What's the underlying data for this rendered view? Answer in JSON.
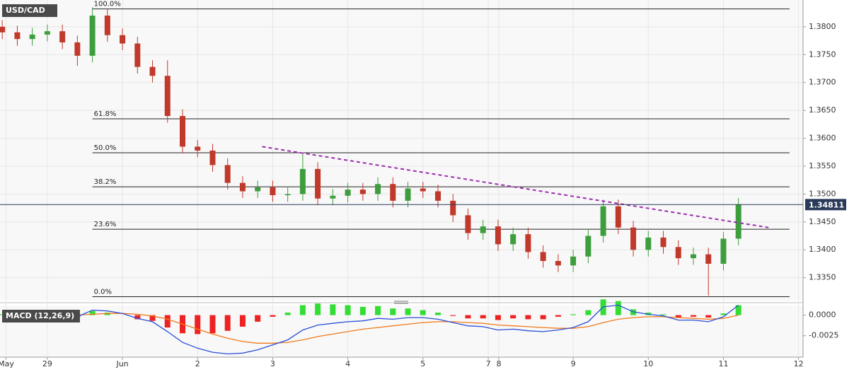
{
  "chart_data": {
    "type": "candlestick",
    "symbol": "USD/CAD",
    "up_color": "#3e9e3e",
    "down_color": "#c0392b",
    "xlim": [
      -1.63,
      9.06
    ],
    "xticks": [
      {
        "value": -1.55,
        "label": "May"
      },
      {
        "value": -1,
        "label": "29"
      },
      {
        "value": 0,
        "label": "Jun"
      },
      {
        "value": 1,
        "label": "2"
      },
      {
        "value": 2,
        "label": "3"
      },
      {
        "value": 3,
        "label": "4"
      },
      {
        "value": 4,
        "label": "5"
      },
      {
        "value": 4.87,
        "label": "7"
      },
      {
        "value": 5.01,
        "label": "8"
      },
      {
        "value": 6,
        "label": "9"
      },
      {
        "value": 7,
        "label": "10"
      },
      {
        "value": 8,
        "label": "11"
      },
      {
        "value": 9,
        "label": "12"
      }
    ],
    "ylim": [
      1.3309,
      1.3848
    ],
    "yticks": [
      {
        "value": 1.335,
        "label": "1.3350"
      },
      {
        "value": 1.34,
        "label": "1.3400"
      },
      {
        "value": 1.345,
        "label": "1.3450"
      },
      {
        "value": 1.35,
        "label": "1.3500"
      },
      {
        "value": 1.355,
        "label": "1.3550"
      },
      {
        "value": 1.36,
        "label": "1.3600"
      },
      {
        "value": 1.365,
        "label": "1.3650"
      },
      {
        "value": 1.37,
        "label": "1.3700"
      },
      {
        "value": 1.375,
        "label": "1.3750"
      },
      {
        "value": 1.38,
        "label": "1.3800"
      }
    ],
    "candles": [
      [
        -1.6,
        1.38,
        1.3812,
        1.3778,
        1.379
      ],
      [
        -1.4,
        1.379,
        1.3802,
        1.3766,
        1.3778
      ],
      [
        -1.2,
        1.3778,
        1.3798,
        1.3766,
        1.3786
      ],
      [
        -1.0,
        1.3786,
        1.3804,
        1.3774,
        1.3792
      ],
      [
        -0.8,
        1.3792,
        1.3804,
        1.376,
        1.3772
      ],
      [
        -0.6,
        1.3772,
        1.3784,
        1.373,
        1.3748
      ],
      [
        -0.4,
        1.3748,
        1.3835,
        1.3736,
        1.382
      ],
      [
        -0.2,
        1.382,
        1.3832,
        1.3773,
        1.3785
      ],
      [
        0,
        1.3785,
        1.3797,
        1.3758,
        1.377
      ],
      [
        0.2,
        1.377,
        1.3782,
        1.3716,
        1.3728
      ],
      [
        0.4,
        1.3728,
        1.374,
        1.37,
        1.3712
      ],
      [
        0.6,
        1.3712,
        1.374,
        1.3628,
        1.364
      ],
      [
        0.8,
        1.364,
        1.3652,
        1.3573,
        1.3585
      ],
      [
        1.0,
        1.3585,
        1.3597,
        1.3566,
        1.3578
      ],
      [
        1.2,
        1.3578,
        1.359,
        1.354,
        1.3552
      ],
      [
        1.4,
        1.3552,
        1.3564,
        1.3508,
        1.352
      ],
      [
        1.6,
        1.352,
        1.3532,
        1.3493,
        1.3505
      ],
      [
        1.8,
        1.3505,
        1.3524,
        1.3493,
        1.3512
      ],
      [
        2.0,
        1.3512,
        1.3524,
        1.3486,
        1.3498
      ],
      [
        2.2,
        1.3498,
        1.3512,
        1.3486,
        1.35
      ],
      [
        2.4,
        1.35,
        1.3572,
        1.3488,
        1.3545
      ],
      [
        2.6,
        1.3545,
        1.3557,
        1.348,
        1.3492
      ],
      [
        2.8,
        1.3492,
        1.3509,
        1.348,
        1.3497
      ],
      [
        3.0,
        1.3497,
        1.352,
        1.3485,
        1.3508
      ],
      [
        3.2,
        1.3508,
        1.352,
        1.3488,
        1.35
      ],
      [
        3.4,
        1.35,
        1.353,
        1.3488,
        1.3518
      ],
      [
        3.6,
        1.3518,
        1.353,
        1.3476,
        1.3488
      ],
      [
        3.8,
        1.3488,
        1.3522,
        1.3476,
        1.351
      ],
      [
        4.0,
        1.351,
        1.3522,
        1.3493,
        1.3505
      ],
      [
        4.2,
        1.3505,
        1.3517,
        1.3476,
        1.3488
      ],
      [
        4.4,
        1.3488,
        1.35,
        1.345,
        1.3462
      ],
      [
        4.6,
        1.3462,
        1.3474,
        1.3418,
        1.343
      ],
      [
        4.8,
        1.343,
        1.3454,
        1.3418,
        1.3442
      ],
      [
        5.0,
        1.3442,
        1.3454,
        1.3398,
        1.341
      ],
      [
        5.2,
        1.341,
        1.344,
        1.3398,
        1.3428
      ],
      [
        5.4,
        1.3428,
        1.344,
        1.3384,
        1.3396
      ],
      [
        5.6,
        1.3396,
        1.3408,
        1.3368,
        1.338
      ],
      [
        5.8,
        1.338,
        1.3392,
        1.336,
        1.3372
      ],
      [
        6.0,
        1.3372,
        1.34,
        1.336,
        1.3388
      ],
      [
        6.2,
        1.3388,
        1.3437,
        1.3376,
        1.3425
      ],
      [
        6.4,
        1.3425,
        1.349,
        1.3413,
        1.3478
      ],
      [
        6.6,
        1.3478,
        1.349,
        1.3428,
        1.344
      ],
      [
        6.8,
        1.344,
        1.3452,
        1.3388,
        1.34
      ],
      [
        7.0,
        1.34,
        1.3434,
        1.3388,
        1.3422
      ],
      [
        7.2,
        1.3422,
        1.3434,
        1.3393,
        1.3405
      ],
      [
        7.4,
        1.3405,
        1.3417,
        1.3373,
        1.3385
      ],
      [
        7.6,
        1.3385,
        1.3404,
        1.3373,
        1.3392
      ],
      [
        7.8,
        1.3392,
        1.3404,
        1.3318,
        1.3375
      ],
      [
        8.0,
        1.3375,
        1.3432,
        1.3363,
        1.342
      ],
      [
        8.2,
        1.342,
        1.3493,
        1.3408,
        1.3481
      ]
    ],
    "fib_levels": [
      {
        "label": "100.0%",
        "value": 1.3832
      },
      {
        "label": "61.8%",
        "value": 1.3635
      },
      {
        "label": "50.0%",
        "value": 1.3574
      },
      {
        "label": "38.2%",
        "value": 1.3513
      },
      {
        "label": "23.6%",
        "value": 1.3437
      },
      {
        "label": "0.0%",
        "value": 1.3316
      }
    ],
    "fib_x": [
      -0.4,
      8.88
    ],
    "trendline": {
      "x": [
        1.86,
        8.6
      ],
      "y": [
        1.3585,
        1.344
      ],
      "color": "#9b2fae"
    },
    "last_price": 1.34811,
    "macd": {
      "label": "MACD (12,26,9)",
      "ylim": [
        -0.00509,
        0.00116
      ],
      "yticks": [
        {
          "value": 0,
          "label": "0.0000"
        },
        -0.0025
      ],
      "macd_color": "#2b4fd6",
      "signal_color": "#f07a1a",
      "hist_up": "#33dd33",
      "hist_down": "#ee2222",
      "macd": [
        0.0002,
        0.0001,
        0.0001,
        0.0002,
        0.0,
        -0.0002,
        0.0006,
        0.0005,
        0.0002,
        -0.0004,
        -0.0008,
        -0.002,
        -0.0033,
        -0.004,
        -0.0045,
        -0.0047,
        -0.0046,
        -0.0042,
        -0.0036,
        -0.003,
        -0.0018,
        -0.0012,
        -0.001,
        -0.0008,
        -0.0007,
        -0.0004,
        -0.0005,
        -0.0003,
        -0.0003,
        -0.0005,
        -0.0009,
        -0.0013,
        -0.0014,
        -0.0018,
        -0.0017,
        -0.0019,
        -0.002,
        -0.0018,
        -0.0015,
        -0.0008,
        0.001,
        0.0012,
        0.0004,
        0.0001,
        -0.0001,
        -0.0006,
        -0.0006,
        -0.0008,
        -0.0002,
        0.0012
      ],
      "signal": [
        0.0001,
        0.0001,
        0.0001,
        0.0001,
        0.0001,
        0.0,
        0.0001,
        0.0002,
        0.0002,
        0.0001,
        -0.0001,
        -0.0005,
        -0.0011,
        -0.0017,
        -0.0023,
        -0.0028,
        -0.0032,
        -0.0034,
        -0.0034,
        -0.0033,
        -0.003,
        -0.0026,
        -0.0023,
        -0.002,
        -0.0017,
        -0.0015,
        -0.0013,
        -0.0011,
        -0.0009,
        -0.0008,
        -0.0008,
        -0.0009,
        -0.001,
        -0.0012,
        -0.0013,
        -0.0014,
        -0.0015,
        -0.0016,
        -0.0016,
        -0.0014,
        -0.0009,
        -0.0005,
        -0.0003,
        -0.0002,
        -0.0002,
        -0.0003,
        -0.0004,
        -0.0005,
        -0.0004,
        0.0
      ],
      "histogram": [
        0.0001,
        0.0,
        0.0,
        0.0001,
        -0.0001,
        -0.0002,
        0.0005,
        0.0003,
        0.0,
        -0.0005,
        -0.0007,
        -0.0015,
        -0.0022,
        -0.0023,
        -0.0022,
        -0.0019,
        -0.0014,
        -0.0008,
        -0.0002,
        0.0003,
        0.0012,
        0.0014,
        0.0013,
        0.0012,
        0.001,
        0.0011,
        0.0008,
        0.0008,
        0.0006,
        0.0003,
        -0.0001,
        -0.0004,
        -0.0004,
        -0.0006,
        -0.0004,
        -0.0005,
        -0.0005,
        -0.0002,
        0.0001,
        0.0006,
        0.0019,
        0.0017,
        0.0007,
        0.0003,
        0.0001,
        -0.0003,
        -0.0002,
        -0.0003,
        0.0002,
        0.0012
      ]
    }
  }
}
